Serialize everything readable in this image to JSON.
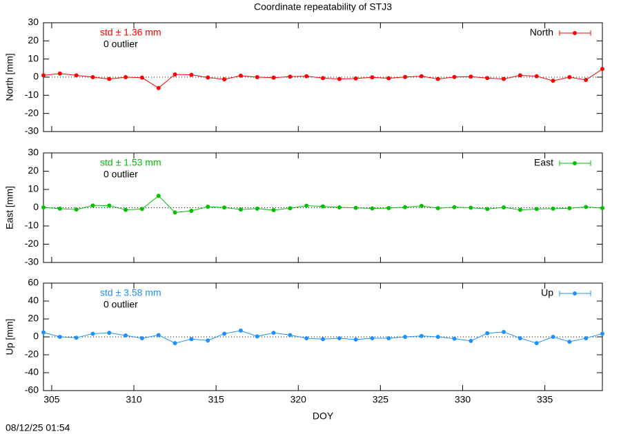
{
  "title": "Coordinate repeatability of STJ3",
  "timestamp": "08/12/25 01:54",
  "chart_data": [
    {
      "type": "line",
      "ylabel": "North [mm]",
      "annotations": [
        "std ± 1.36 mm",
        "0 outlier"
      ],
      "x": [
        304.5,
        305.5,
        306.5,
        307.5,
        308.5,
        309.5,
        310.5,
        311.5,
        312.5,
        313.5,
        314.5,
        315.5,
        316.5,
        317.5,
        318.5,
        319.5,
        320.5,
        321.5,
        322.5,
        323.5,
        324.5,
        325.5,
        326.5,
        327.5,
        328.5,
        329.5,
        330.5,
        331.5,
        332.5,
        333.5,
        334.5,
        335.5,
        336.5,
        337.5,
        338.5
      ],
      "series": [
        {
          "name": "North",
          "color": "#ff0000",
          "values": [
            1,
            2,
            1,
            0,
            -1,
            0,
            -0.3,
            -6,
            1.5,
            1.3,
            -0.2,
            -1.2,
            0.8,
            0,
            -0.3,
            0.3,
            0.5,
            -0.5,
            -1,
            -0.7,
            -0.1,
            -0.6,
            0.1,
            0.5,
            -1,
            0.1,
            0.3,
            -0.5,
            -1,
            1,
            0.5,
            -2,
            0,
            -1.5,
            4.5
          ]
        }
      ],
      "xlim": [
        304.5,
        338.5
      ],
      "xticks": [
        305,
        310,
        315,
        320,
        325,
        330,
        335
      ],
      "ylim": [
        -30,
        30
      ],
      "yticks": [
        -30,
        -20,
        -10,
        0,
        10,
        20,
        30
      ]
    },
    {
      "type": "line",
      "ylabel": "East [mm]",
      "annotations": [
        "std ± 1.53 mm",
        "0 outlier"
      ],
      "x": [
        304.5,
        305.5,
        306.5,
        307.5,
        308.5,
        309.5,
        310.5,
        311.5,
        312.5,
        313.5,
        314.5,
        315.5,
        316.5,
        317.5,
        318.5,
        319.5,
        320.5,
        321.5,
        322.5,
        323.5,
        324.5,
        325.5,
        326.5,
        327.5,
        328.5,
        329.5,
        330.5,
        331.5,
        332.5,
        333.5,
        334.5,
        335.5,
        336.5,
        337.5,
        338.5
      ],
      "series": [
        {
          "name": "East",
          "color": "#00c000",
          "values": [
            0.2,
            -0.5,
            -1,
            1.2,
            1.2,
            -1.2,
            -0.7,
            6.5,
            -2.6,
            -1.7,
            0.5,
            0.1,
            -1,
            -0.5,
            -1.3,
            -0.3,
            1.1,
            0.7,
            0.2,
            -0.1,
            -0.4,
            -0.2,
            0.3,
            1,
            -0.3,
            0.3,
            0,
            -0.7,
            0.2,
            -1.2,
            -0.7,
            -0.5,
            -0.3,
            0.4,
            -0.2
          ]
        }
      ],
      "xlim": [
        304.5,
        338.5
      ],
      "xticks": [
        305,
        310,
        315,
        320,
        325,
        330,
        335
      ],
      "ylim": [
        -30,
        30
      ],
      "yticks": [
        -30,
        -20,
        -10,
        0,
        10,
        20,
        30
      ]
    },
    {
      "type": "line",
      "ylabel": "Up [mm]",
      "xlabel": "DOY",
      "annotations": [
        "std ± 3.58 mm",
        "0 outlier"
      ],
      "x": [
        304.5,
        305.5,
        306.5,
        307.5,
        308.5,
        309.5,
        310.5,
        311.5,
        312.5,
        313.5,
        314.5,
        315.5,
        316.5,
        317.5,
        318.5,
        319.5,
        320.5,
        321.5,
        322.5,
        323.5,
        324.5,
        325.5,
        326.5,
        327.5,
        328.5,
        329.5,
        330.5,
        331.5,
        332.5,
        333.5,
        334.5,
        335.5,
        336.5,
        337.5,
        338.5
      ],
      "series": [
        {
          "name": "Up",
          "color": "#1e90ff",
          "values": [
            5,
            0,
            -1,
            3.5,
            4.5,
            1.5,
            -1.5,
            2,
            -7,
            -2.5,
            -4,
            3.5,
            7,
            0.5,
            4.5,
            2,
            -1.5,
            -2.5,
            -1.5,
            -3,
            -1.5,
            -1.5,
            0,
            1,
            0,
            -2,
            -4.5,
            4,
            5.5,
            -1.5,
            -7,
            0,
            -5.5,
            -1.5,
            3.5
          ]
        }
      ],
      "xlim": [
        304.5,
        338.5
      ],
      "xticks": [
        305,
        310,
        315,
        320,
        325,
        330,
        335
      ],
      "ylim": [
        -60,
        60
      ],
      "yticks": [
        -60,
        -40,
        -20,
        0,
        20,
        40,
        60
      ]
    }
  ]
}
